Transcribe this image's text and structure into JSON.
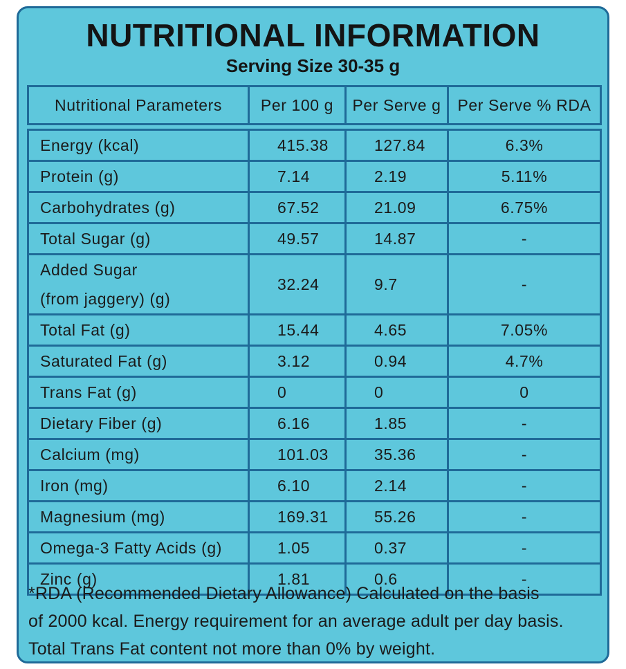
{
  "header": {
    "title": "NUTRITIONAL INFORMATION",
    "subtitle": "Serving Size 30-35 g"
  },
  "table": {
    "columns": [
      "Nutritional Parameters",
      "Per 100 g",
      "Per Serve g",
      "Per Serve % RDA"
    ],
    "rows": [
      [
        "Energy (kcal)",
        "415.38",
        "127.84",
        "6.3%"
      ],
      [
        "Protein (g)",
        "7.14",
        "2.19",
        "5.11%"
      ],
      [
        "Carbohydrates (g)",
        "67.52",
        "21.09",
        "6.75%"
      ],
      [
        "Total Sugar (g)",
        "49.57",
        "14.87",
        "-"
      ],
      [
        "Added Sugar\n(from jaggery) (g)",
        "32.24",
        "9.7",
        "-"
      ],
      [
        "Total Fat (g)",
        "15.44",
        "4.65",
        "7.05%"
      ],
      [
        "Saturated Fat (g)",
        "3.12",
        "0.94",
        "4.7%"
      ],
      [
        "Trans Fat (g)",
        "0",
        "0",
        "0"
      ],
      [
        "Dietary Fiber (g)",
        "6.16",
        "1.85",
        "-"
      ],
      [
        "Calcium (mg)",
        "101.03",
        "35.36",
        "-"
      ],
      [
        "Iron (mg)",
        "6.10",
        "2.14",
        "-"
      ],
      [
        "Magnesium (mg)",
        "169.31",
        "55.26",
        "-"
      ],
      [
        "Omega-3 Fatty Acids (g)",
        "1.05",
        "0.37",
        "-"
      ],
      [
        "Zinc (g)",
        "1.81",
        "0.6",
        "-"
      ]
    ]
  },
  "footnote": {
    "lines": [
      "*RDA (Recommended Dietary Allowance) Calculated on the basis",
      "of 2000 kcal. Energy requirement for an average adult per day basis.",
      "Total Trans Fat content not more than 0% by weight."
    ]
  }
}
